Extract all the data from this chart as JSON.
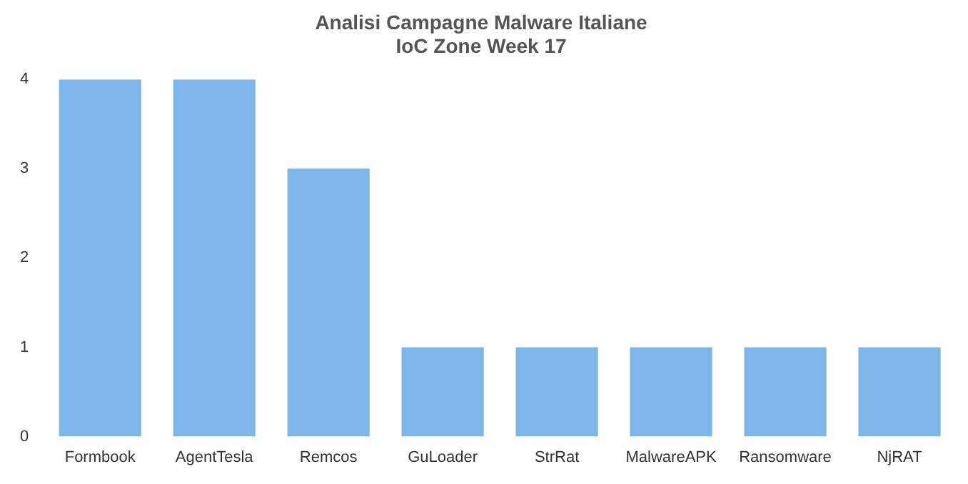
{
  "chart_data": {
    "type": "bar",
    "title": [
      "Analisi Campagne Malware Italiane",
      "IoC Zone Week 17"
    ],
    "categories": [
      "Formbook",
      "AgentTesla",
      "Remcos",
      "GuLoader",
      "StrRat",
      "MalwareAPK",
      "Ransomware",
      "NjRAT"
    ],
    "values": [
      4,
      4,
      3,
      1,
      1,
      1,
      1,
      1
    ],
    "color": "#7eb6ec",
    "ylim": [
      0,
      4
    ],
    "yticks": [
      0,
      1,
      2,
      3,
      4
    ],
    "grid": false,
    "legend": false
  }
}
